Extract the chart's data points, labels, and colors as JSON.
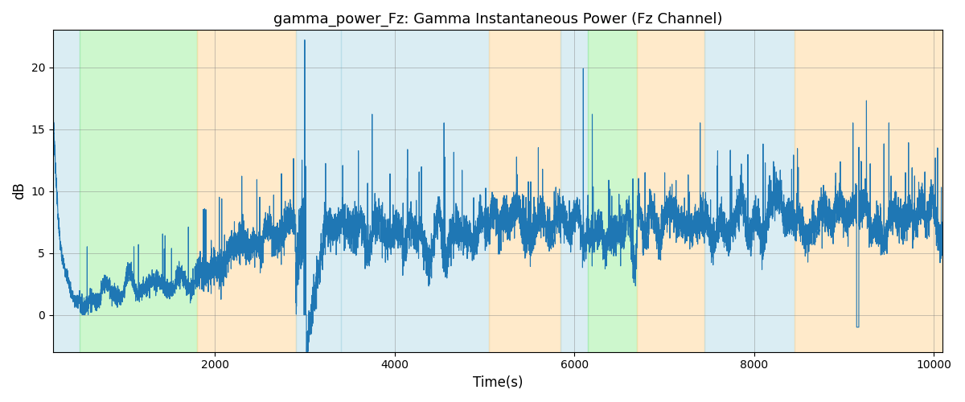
{
  "title": "gamma_power_Fz: Gamma Instantaneous Power (Fz Channel)",
  "xlabel": "Time(s)",
  "ylabel": "dB",
  "xlim": [
    200,
    10100
  ],
  "ylim": [
    -3,
    23
  ],
  "line_color": "#1f77b4",
  "line_width": 0.8,
  "grid": true,
  "colored_regions": [
    {
      "start": 200,
      "end": 500,
      "color": "#add8e6",
      "alpha": 0.45
    },
    {
      "start": 500,
      "end": 1800,
      "color": "#90ee90",
      "alpha": 0.45
    },
    {
      "start": 1800,
      "end": 2900,
      "color": "#ffd9a0",
      "alpha": 0.55
    },
    {
      "start": 2900,
      "end": 3400,
      "color": "#add8e6",
      "alpha": 0.45
    },
    {
      "start": 3400,
      "end": 5050,
      "color": "#add8e6",
      "alpha": 0.45
    },
    {
      "start": 5050,
      "end": 5850,
      "color": "#ffd9a0",
      "alpha": 0.55
    },
    {
      "start": 5850,
      "end": 6150,
      "color": "#add8e6",
      "alpha": 0.45
    },
    {
      "start": 6150,
      "end": 6700,
      "color": "#90ee90",
      "alpha": 0.45
    },
    {
      "start": 6700,
      "end": 7450,
      "color": "#ffd9a0",
      "alpha": 0.55
    },
    {
      "start": 7450,
      "end": 8450,
      "color": "#add8e6",
      "alpha": 0.45
    },
    {
      "start": 8450,
      "end": 10100,
      "color": "#ffd9a0",
      "alpha": 0.55
    }
  ],
  "seed": 7,
  "t_start": 200,
  "t_end": 10100,
  "n_points": 9900
}
